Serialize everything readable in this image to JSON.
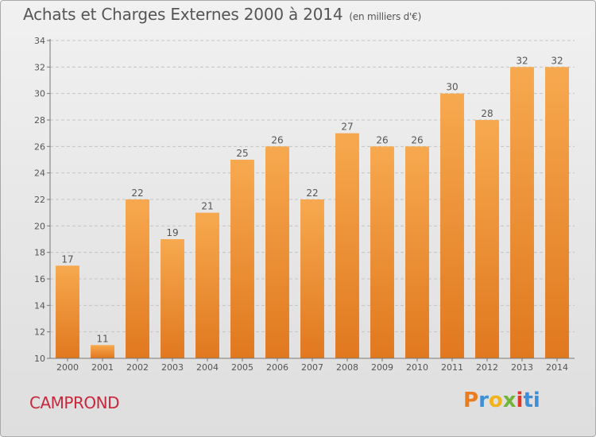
{
  "title": {
    "main": "Achats et Charges Externes 2000 à 2014",
    "unit": "(en milliers d'€)"
  },
  "town": "CAMPROND",
  "logo": {
    "text": "Proxiti",
    "letters": [
      "P",
      "r",
      "o",
      "x",
      "i",
      "ti"
    ]
  },
  "colors": {
    "bar_light": "#f7a94f",
    "bar_dark": "#e0781e",
    "town": "#c8283c",
    "text": "#555555"
  },
  "chart_data": {
    "type": "bar",
    "title": "Achats et Charges Externes 2000 à 2014",
    "subtitle": "(en milliers d'€)",
    "categories": [
      "2000",
      "2001",
      "2002",
      "2003",
      "2004",
      "2005",
      "2006",
      "2007",
      "2008",
      "2009",
      "2010",
      "2011",
      "2012",
      "2013",
      "2014"
    ],
    "values": [
      17,
      11,
      22,
      19,
      21,
      25,
      26,
      22,
      27,
      26,
      26,
      30,
      28,
      32,
      32
    ],
    "data_labels": [
      "17",
      "11",
      "22",
      "19",
      "21",
      "25",
      "26",
      "22",
      "27",
      "26",
      "26",
      "30",
      "28",
      "32",
      "32"
    ],
    "ylim": [
      10,
      34
    ],
    "yticks": [
      10,
      12,
      14,
      16,
      18,
      20,
      22,
      24,
      26,
      28,
      30,
      32,
      34
    ],
    "ytick_labels": [
      "10",
      "12",
      "14",
      "16",
      "18",
      "20",
      "22",
      "24",
      "26",
      "28",
      "30",
      "32",
      "34"
    ],
    "xlabel": "",
    "ylabel": "",
    "grid": "horizontal dashed",
    "legend": "none"
  }
}
